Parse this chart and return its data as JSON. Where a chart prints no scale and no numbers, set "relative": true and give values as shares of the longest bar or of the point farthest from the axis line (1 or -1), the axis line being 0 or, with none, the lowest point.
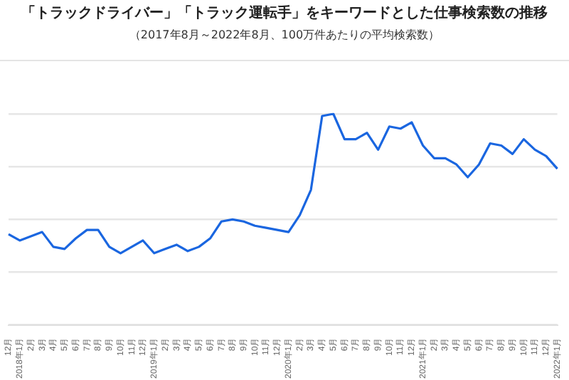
{
  "chart_data": {
    "type": "line",
    "title": "「トラックドライバー」「トラック運転手」をキーワードとした仕事検索数の推移",
    "subtitle": "（2017年8月～2022年8月、100万件あたりの平均検索数）",
    "categories": [
      "12月",
      "2018年1月",
      "2月",
      "3月",
      "4月",
      "5月",
      "6月",
      "7月",
      "8月",
      "9月",
      "10月",
      "11月",
      "12月",
      "2019年1月",
      "2月",
      "3月",
      "4月",
      "5月",
      "6月",
      "7月",
      "8月",
      "9月",
      "10月",
      "11月",
      "12月",
      "2020年1月",
      "2月",
      "3月",
      "4月",
      "5月",
      "6月",
      "7月",
      "8月",
      "9月",
      "10月",
      "11月",
      "12月",
      "2021年1月",
      "2月",
      "3月",
      "4月",
      "5月",
      "6月",
      "7月",
      "8月",
      "9月",
      "10月",
      "11月",
      "12月",
      "2022年1月"
    ],
    "relative": true,
    "grid": "y",
    "legend": false,
    "marker": "none",
    "line_style": "solid",
    "series": [
      {
        "color": "#1a66e0",
        "values": [
          0.43,
          0.4,
          0.42,
          0.44,
          0.37,
          0.36,
          0.41,
          0.45,
          0.45,
          0.37,
          0.34,
          0.37,
          0.4,
          0.34,
          0.36,
          0.38,
          0.35,
          0.37,
          0.41,
          0.49,
          0.5,
          0.49,
          0.47,
          0.46,
          0.45,
          0.44,
          0.52,
          0.64,
          0.99,
          1.0,
          0.88,
          0.88,
          0.91,
          0.83,
          0.94,
          0.93,
          0.96,
          0.85,
          0.79,
          0.79,
          0.76,
          0.7,
          0.76,
          0.86,
          0.85,
          0.81,
          0.88,
          0.83,
          0.8,
          0.74
        ]
      }
    ]
  }
}
